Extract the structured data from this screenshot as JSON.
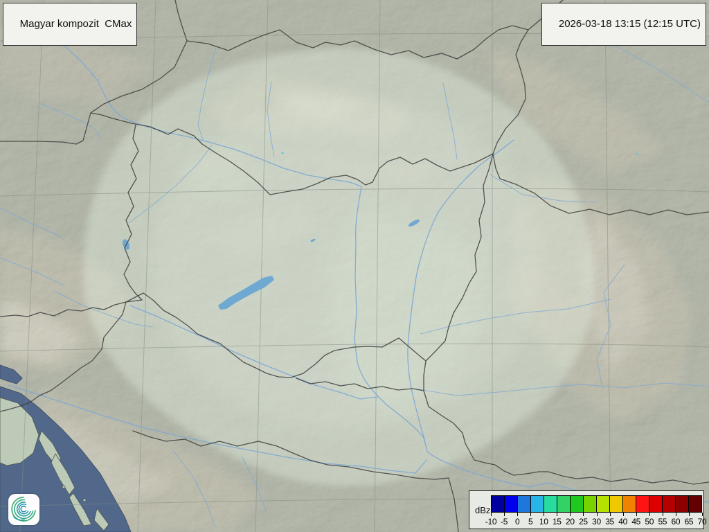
{
  "header": {
    "product_label": "Magyar kompozit  CMax",
    "timestamp": "2026-03-18 13:15 (12:15 UTC)"
  },
  "legend": {
    "unit_label": "dBz",
    "ticks": [
      "-10",
      "-5",
      "0",
      "5",
      "10",
      "15",
      "20",
      "25",
      "30",
      "35",
      "40",
      "45",
      "50",
      "55",
      "60",
      "65",
      "70"
    ],
    "colors": [
      "#0000A0",
      "#0000F0",
      "#1E78DC",
      "#28B4E6",
      "#28DCA0",
      "#32D264",
      "#1EC81E",
      "#78D200",
      "#B4E100",
      "#F0C800",
      "#F08200",
      "#FF1414",
      "#DC0000",
      "#B40000",
      "#8C0000",
      "#640000"
    ]
  },
  "map": {
    "colors": {
      "land": "#a6b1a4",
      "land_light": "#c9d6c6",
      "coverage": "#e3efe0",
      "sea": "#51688a",
      "river": "#7fa9d3",
      "lake": "#6fa8d0",
      "border": "#3c3c3c",
      "graticule": "#7f8a82",
      "mountain": "#cfc6b4",
      "ridge": "#ece9dd"
    }
  },
  "logo": {
    "gradient_start": "#46b06a",
    "gradient_end": "#1d87ae"
  }
}
